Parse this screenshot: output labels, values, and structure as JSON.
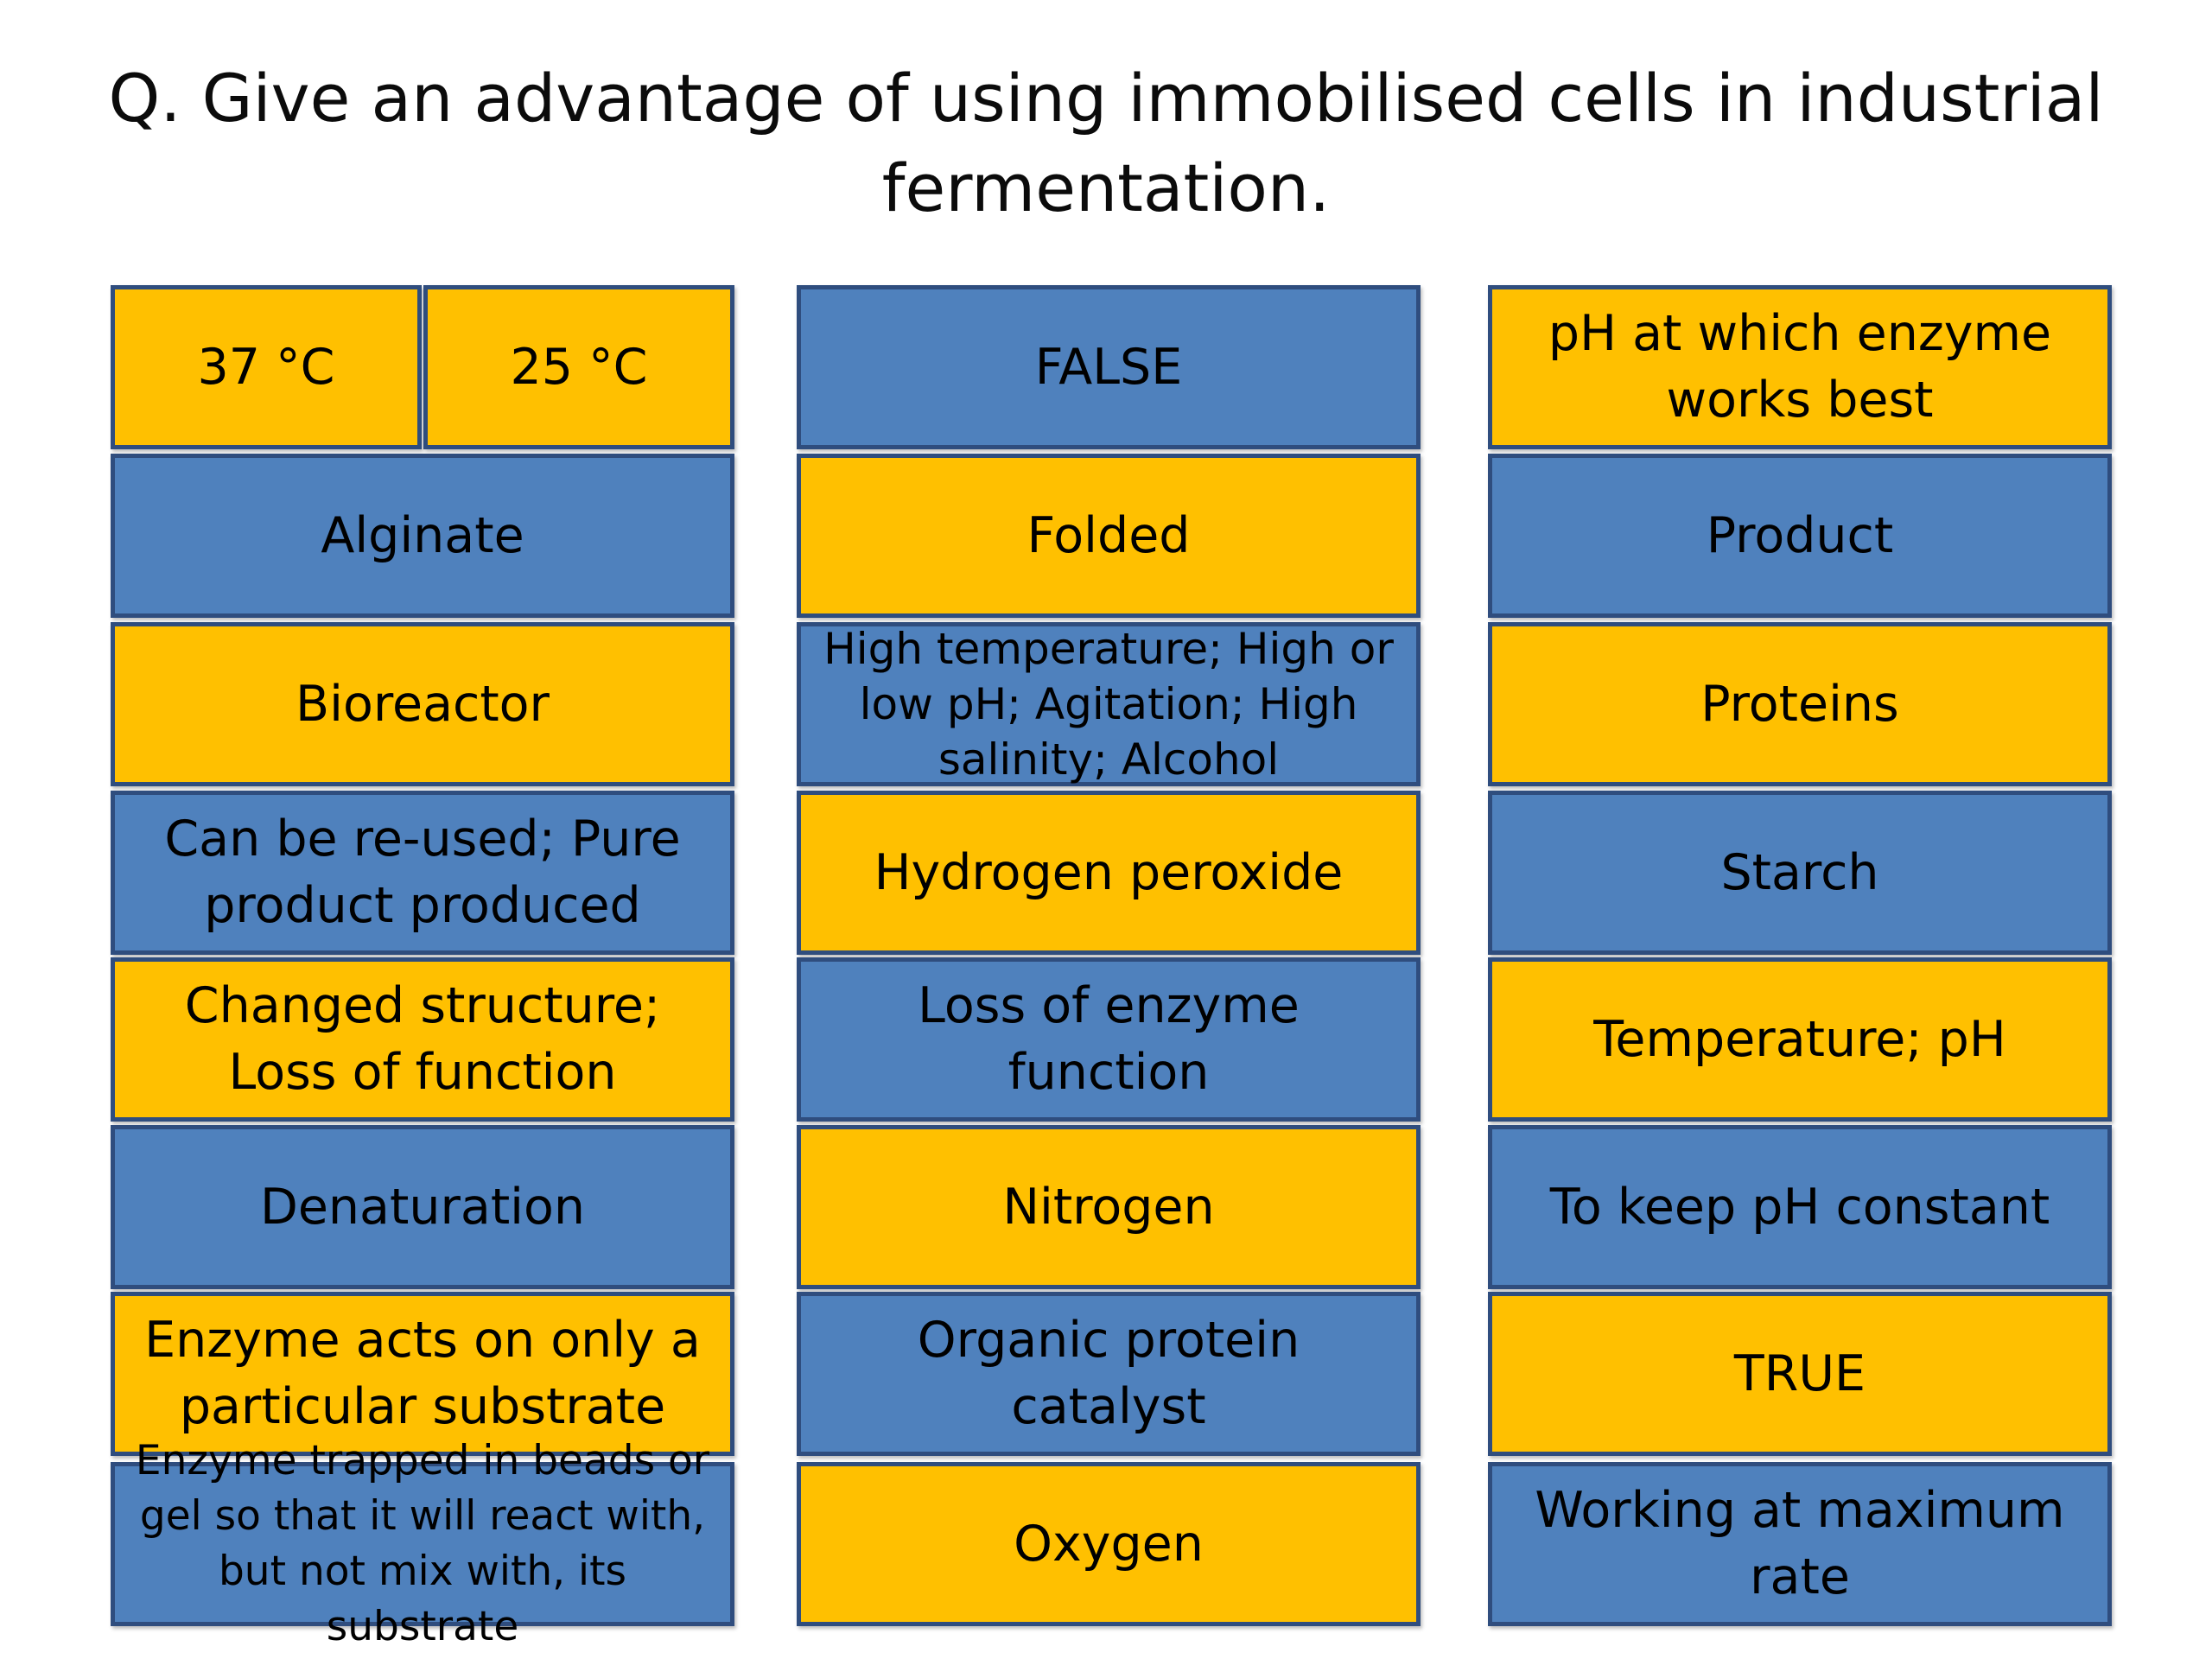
{
  "question": "Q. Give an advantage of using immobilised cells in industrial fermentation.",
  "colors": {
    "blue": "#4f81bd",
    "gold": "#ffc000",
    "border": "#2f4d7e"
  },
  "columns": [
    {
      "tiles": [
        {
          "split": true,
          "color": "gold",
          "left": "37 °C",
          "right": "25 °C"
        },
        {
          "color": "blue",
          "label": "Alginate"
        },
        {
          "color": "gold",
          "label": "Bioreactor"
        },
        {
          "color": "blue",
          "label": "Can be re-used; Pure product produced"
        },
        {
          "color": "gold",
          "label": "Changed structure; Loss of function"
        },
        {
          "color": "blue",
          "label": "Denaturation"
        },
        {
          "color": "gold",
          "label": "Enzyme acts on only a particular substrate"
        },
        {
          "color": "blue",
          "label": "Enzyme trapped in beads or gel so that it will react with, but not mix with, its substrate"
        }
      ]
    },
    {
      "tiles": [
        {
          "color": "blue",
          "label": "FALSE"
        },
        {
          "color": "gold",
          "label": "Folded"
        },
        {
          "color": "blue",
          "label": "High temperature; High or low pH; Agitation; High salinity; Alcohol"
        },
        {
          "color": "gold",
          "label": "Hydrogen peroxide"
        },
        {
          "color": "blue",
          "label": "Loss of enzyme function"
        },
        {
          "color": "gold",
          "label": "Nitrogen"
        },
        {
          "color": "blue",
          "label": "Organic protein catalyst"
        },
        {
          "color": "gold",
          "label": "Oxygen"
        }
      ]
    },
    {
      "tiles": [
        {
          "color": "gold",
          "label": "pH at which enzyme works best"
        },
        {
          "color": "blue",
          "label": "Product"
        },
        {
          "color": "gold",
          "label": "Proteins"
        },
        {
          "color": "blue",
          "label": "Starch"
        },
        {
          "color": "gold",
          "label": "Temperature; pH"
        },
        {
          "color": "blue",
          "label": "To keep pH constant"
        },
        {
          "color": "gold",
          "label": "TRUE"
        },
        {
          "color": "blue",
          "label": "Working at maximum rate"
        }
      ]
    }
  ]
}
